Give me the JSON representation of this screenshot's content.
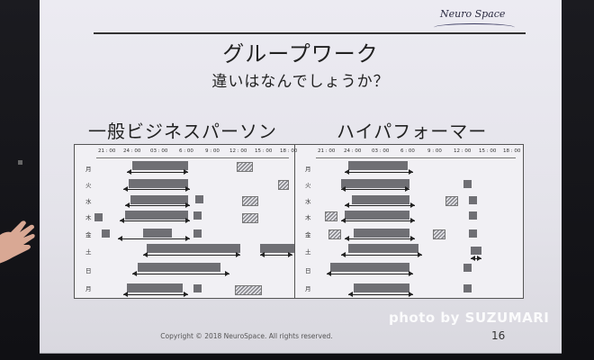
{
  "slide": {
    "logo": "Neuro Space",
    "title": "グループワーク",
    "subtitle": "違いはなんでしょうか？",
    "left_heading": "一般ビジネスパーソン",
    "right_heading": "ハイパフォーマー",
    "time_labels": [
      "21 : 00",
      "24 : 00",
      "03 : 00",
      "6 : 00",
      "9 : 00",
      "12 : 00",
      "15 : 00",
      "18 : 00"
    ],
    "day_labels": [
      "月",
      "火",
      "水",
      "木",
      "金",
      "土",
      "日",
      "月"
    ],
    "copyright": "Copyright © 2018 NeuroSpace. All rights reserved.",
    "page_number": "16"
  },
  "watermark": "photo by SUZUMARI",
  "colors": {
    "sleep_bar": "#6f6f74",
    "slide_bg": "#ecebf2",
    "frame_bg": "#15151a"
  }
}
